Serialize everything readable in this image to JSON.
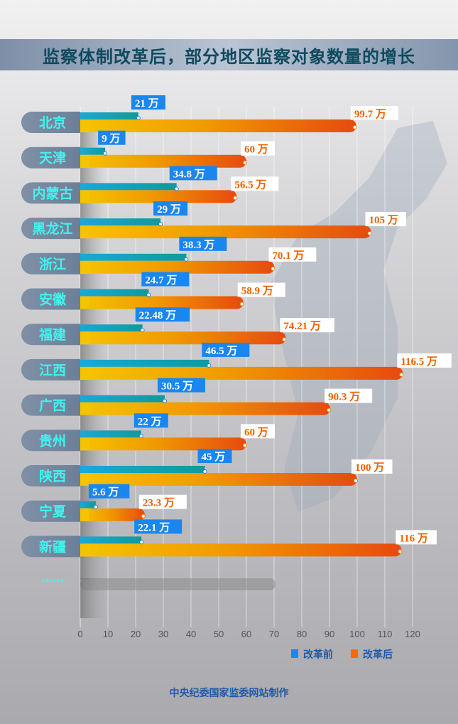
{
  "title": "监察体制改革后，部分地区监察对象数量的增长",
  "footer": "中央纪委国家监委网站制作",
  "colors": {
    "before": "#1a86f0",
    "after": "#ff6a00",
    "label_text": "#3ff5f0",
    "title": "#0f4a5e"
  },
  "chart_data": {
    "type": "bar",
    "orientation": "horizontal",
    "title": "监察体制改革后，部分地区监察对象数量的增长",
    "categories": [
      "北京",
      "天津",
      "内蒙古",
      "黑龙江",
      "浙江",
      "安徽",
      "福建",
      "江西",
      "广西",
      "贵州",
      "陕西",
      "宁夏",
      "新疆"
    ],
    "trailing_category": "……",
    "unit": "万",
    "series": [
      {
        "name": "改革前",
        "values": [
          21,
          9,
          34.8,
          29,
          38.3,
          24.7,
          22.48,
          46.5,
          30.5,
          22,
          45,
          5.6,
          22.1
        ],
        "labels": [
          "21 万",
          "9 万",
          "34.8 万",
          "29 万",
          "38.3 万",
          "24.7 万",
          "22.48 万",
          "46.5 万",
          "30.5 万",
          "22 万",
          "45 万",
          "5.6 万",
          "22.1 万"
        ]
      },
      {
        "name": "改革后",
        "values": [
          99.7,
          60,
          56.5,
          105,
          70.1,
          58.9,
          74.21,
          116.5,
          90.3,
          60,
          100,
          23.3,
          116
        ],
        "labels": [
          "99.7 万",
          "60 万",
          "56.5 万",
          "105 万",
          "70.1 万",
          "58.9 万",
          "74.21 万",
          "116.5 万",
          "90.3 万",
          "60 万",
          "100 万",
          "23.3 万",
          "116 万"
        ]
      }
    ],
    "xlim": [
      0,
      120
    ],
    "xticks": [
      "0",
      "10",
      "20",
      "30",
      "40",
      "50",
      "60",
      "70",
      "80",
      "90",
      "100",
      "110",
      "120"
    ],
    "grid": true,
    "legend": "bottom-right"
  }
}
